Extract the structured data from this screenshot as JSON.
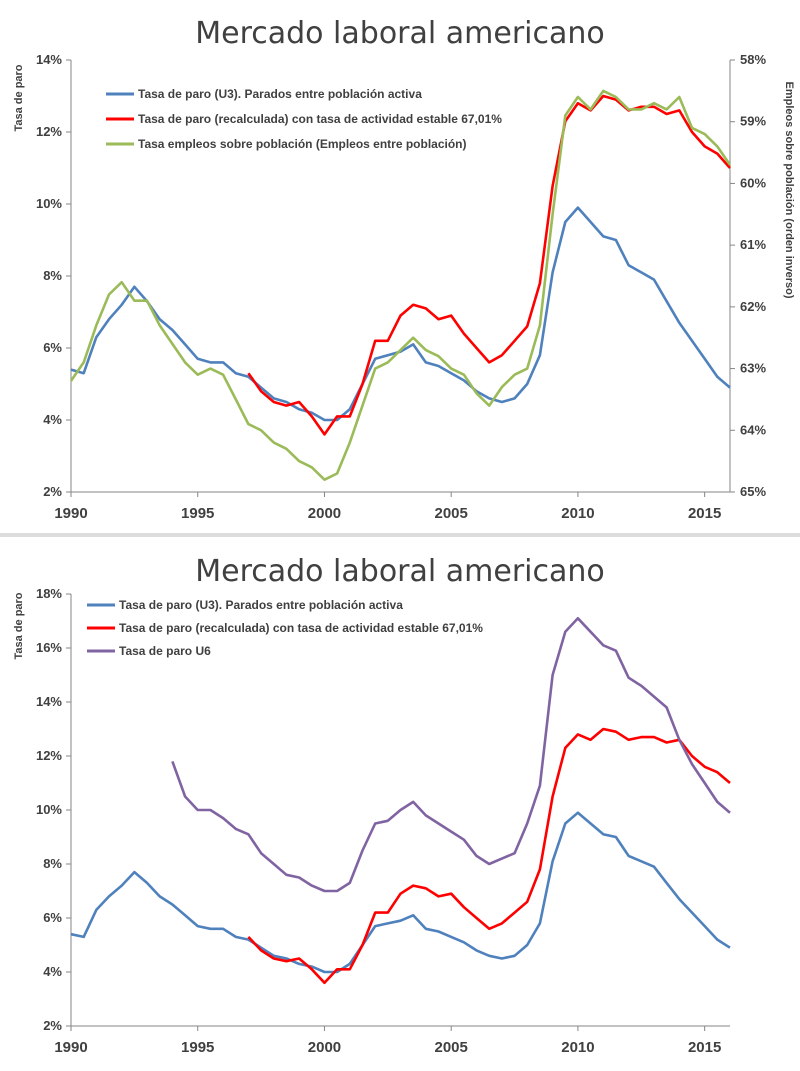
{
  "chart_data": [
    {
      "type": "line",
      "title": "Mercado laboral americano",
      "ylabel": "Tasa de paro",
      "y2label": "Empleos sobre población (orden inverso)",
      "ylim": [
        2,
        14
      ],
      "y2lim": [
        65,
        58
      ],
      "y2_inverted": true,
      "xlim": [
        1990,
        2016
      ],
      "yticks": [
        "2%",
        "4%",
        "6%",
        "8%",
        "10%",
        "12%",
        "14%"
      ],
      "y2ticks": [
        "65%",
        "64%",
        "63%",
        "62%",
        "61%",
        "60%",
        "59%",
        "58%"
      ],
      "xticks": [
        "1990",
        "1995",
        "2000",
        "2005",
        "2010",
        "2015"
      ],
      "legend_position": "top-left",
      "grid": false,
      "series": [
        {
          "name": "Tasa de paro (U3). Parados entre población activa",
          "color": "#4F81BD",
          "axis": "left",
          "x": [
            1990,
            1990.5,
            1991,
            1991.5,
            1992,
            1992.5,
            1993,
            1993.5,
            1994,
            1994.5,
            1995,
            1995.5,
            1996,
            1996.5,
            1997,
            1997.5,
            1998,
            1998.5,
            1999,
            1999.5,
            2000,
            2000.5,
            2001,
            2001.5,
            2002,
            2002.5,
            2003,
            2003.5,
            2004,
            2004.5,
            2005,
            2005.5,
            2006,
            2006.5,
            2007,
            2007.5,
            2008,
            2008.5,
            2009,
            2009.5,
            2010,
            2010.5,
            2011,
            2011.5,
            2012,
            2012.5,
            2013,
            2013.5,
            2014,
            2014.5,
            2015,
            2015.5,
            2016
          ],
          "y": [
            5.4,
            5.3,
            6.3,
            6.8,
            7.2,
            7.7,
            7.3,
            6.8,
            6.5,
            6.1,
            5.7,
            5.6,
            5.6,
            5.3,
            5.2,
            4.9,
            4.6,
            4.5,
            4.3,
            4.2,
            4.0,
            4.0,
            4.3,
            5.0,
            5.7,
            5.8,
            5.9,
            6.1,
            5.6,
            5.5,
            5.3,
            5.1,
            4.8,
            4.6,
            4.5,
            4.6,
            5.0,
            5.8,
            8.1,
            9.5,
            9.9,
            9.5,
            9.1,
            9.0,
            8.3,
            8.1,
            7.9,
            7.3,
            6.7,
            6.2,
            5.7,
            5.2,
            4.9
          ]
        },
        {
          "name": "Tasa de paro (recalculada) con tasa de actividad estable 67,01%",
          "color": "#FF0000",
          "axis": "left",
          "x": [
            1997,
            1997.5,
            1998,
            1998.5,
            1999,
            1999.5,
            2000,
            2000.5,
            2001,
            2001.5,
            2002,
            2002.5,
            2003,
            2003.5,
            2004,
            2004.5,
            2005,
            2005.5,
            2006,
            2006.5,
            2007,
            2007.5,
            2008,
            2008.5,
            2009,
            2009.5,
            2010,
            2010.5,
            2011,
            2011.5,
            2012,
            2012.5,
            2013,
            2013.5,
            2014,
            2014.5,
            2015,
            2015.5,
            2016
          ],
          "y": [
            5.3,
            4.8,
            4.5,
            4.4,
            4.5,
            4.1,
            3.6,
            4.1,
            4.1,
            5.0,
            6.2,
            6.2,
            6.9,
            7.2,
            7.1,
            6.8,
            6.9,
            6.4,
            6.0,
            5.6,
            5.8,
            6.2,
            6.6,
            7.8,
            10.5,
            12.3,
            12.8,
            12.6,
            13.0,
            12.9,
            12.6,
            12.7,
            12.7,
            12.5,
            12.6,
            12.0,
            11.6,
            11.4,
            11.0
          ]
        },
        {
          "name": "Tasa empleos sobre población (Empleos entre población)",
          "color": "#9BBB59",
          "axis": "right",
          "x": [
            1990,
            1990.5,
            1991,
            1991.5,
            1992,
            1992.5,
            1993,
            1993.5,
            1994,
            1994.5,
            1995,
            1995.5,
            1996,
            1996.5,
            1997,
            1997.5,
            1998,
            1998.5,
            1999,
            1999.5,
            2000,
            2000.5,
            2001,
            2001.5,
            2002,
            2002.5,
            2003,
            2003.5,
            2004,
            2004.5,
            2005,
            2005.5,
            2006,
            2006.5,
            2007,
            2007.5,
            2008,
            2008.5,
            2009,
            2009.5,
            2010,
            2010.5,
            2011,
            2011.5,
            2012,
            2012.5,
            2013,
            2013.5,
            2014,
            2014.5,
            2015,
            2015.5,
            2016
          ],
          "y": [
            63.2,
            62.9,
            62.3,
            61.8,
            61.6,
            61.9,
            61.9,
            62.3,
            62.6,
            62.9,
            63.1,
            63.0,
            63.1,
            63.5,
            63.9,
            64.0,
            64.2,
            64.3,
            64.5,
            64.6,
            64.8,
            64.7,
            64.2,
            63.6,
            63.0,
            62.9,
            62.7,
            62.5,
            62.7,
            62.8,
            63.0,
            63.1,
            63.4,
            63.6,
            63.3,
            63.1,
            63.0,
            62.3,
            60.5,
            58.9,
            58.6,
            58.8,
            58.5,
            58.6,
            58.8,
            58.8,
            58.7,
            58.8,
            58.6,
            59.1,
            59.2,
            59.4,
            59.7
          ]
        }
      ]
    },
    {
      "type": "line",
      "title": "Mercado laboral americano",
      "ylabel": "Tasa de paro",
      "ylim": [
        2,
        18
      ],
      "xlim": [
        1990,
        2016
      ],
      "yticks": [
        "2%",
        "4%",
        "6%",
        "8%",
        "10%",
        "12%",
        "14%",
        "16%",
        "18%"
      ],
      "xticks": [
        "1990",
        "1995",
        "2000",
        "2005",
        "2010",
        "2015"
      ],
      "legend_position": "top-left",
      "grid": false,
      "series": [
        {
          "name": "Tasa de paro (U3). Parados entre población activa",
          "color": "#4F81BD",
          "x": [
            1990,
            1990.5,
            1991,
            1991.5,
            1992,
            1992.5,
            1993,
            1993.5,
            1994,
            1994.5,
            1995,
            1995.5,
            1996,
            1996.5,
            1997,
            1997.5,
            1998,
            1998.5,
            1999,
            1999.5,
            2000,
            2000.5,
            2001,
            2001.5,
            2002,
            2002.5,
            2003,
            2003.5,
            2004,
            2004.5,
            2005,
            2005.5,
            2006,
            2006.5,
            2007,
            2007.5,
            2008,
            2008.5,
            2009,
            2009.5,
            2010,
            2010.5,
            2011,
            2011.5,
            2012,
            2012.5,
            2013,
            2013.5,
            2014,
            2014.5,
            2015,
            2015.5,
            2016
          ],
          "y": [
            5.4,
            5.3,
            6.3,
            6.8,
            7.2,
            7.7,
            7.3,
            6.8,
            6.5,
            6.1,
            5.7,
            5.6,
            5.6,
            5.3,
            5.2,
            4.9,
            4.6,
            4.5,
            4.3,
            4.2,
            4.0,
            4.0,
            4.3,
            5.0,
            5.7,
            5.8,
            5.9,
            6.1,
            5.6,
            5.5,
            5.3,
            5.1,
            4.8,
            4.6,
            4.5,
            4.6,
            5.0,
            5.8,
            8.1,
            9.5,
            9.9,
            9.5,
            9.1,
            9.0,
            8.3,
            8.1,
            7.9,
            7.3,
            6.7,
            6.2,
            5.7,
            5.2,
            4.9
          ]
        },
        {
          "name": "Tasa de paro (recalculada) con tasa de actividad estable 67,01%",
          "color": "#FF0000",
          "x": [
            1997,
            1997.5,
            1998,
            1998.5,
            1999,
            1999.5,
            2000,
            2000.5,
            2001,
            2001.5,
            2002,
            2002.5,
            2003,
            2003.5,
            2004,
            2004.5,
            2005,
            2005.5,
            2006,
            2006.5,
            2007,
            2007.5,
            2008,
            2008.5,
            2009,
            2009.5,
            2010,
            2010.5,
            2011,
            2011.5,
            2012,
            2012.5,
            2013,
            2013.5,
            2014,
            2014.5,
            2015,
            2015.5,
            2016
          ],
          "y": [
            5.3,
            4.8,
            4.5,
            4.4,
            4.5,
            4.1,
            3.6,
            4.1,
            4.1,
            5.0,
            6.2,
            6.2,
            6.9,
            7.2,
            7.1,
            6.8,
            6.9,
            6.4,
            6.0,
            5.6,
            5.8,
            6.2,
            6.6,
            7.8,
            10.5,
            12.3,
            12.8,
            12.6,
            13.0,
            12.9,
            12.6,
            12.7,
            12.7,
            12.5,
            12.6,
            12.0,
            11.6,
            11.4,
            11.0
          ]
        },
        {
          "name": "Tasa de paro U6",
          "color": "#8064A2",
          "x": [
            1994,
            1994.5,
            1995,
            1995.5,
            1996,
            1996.5,
            1997,
            1997.5,
            1998,
            1998.5,
            1999,
            1999.5,
            2000,
            2000.5,
            2001,
            2001.5,
            2002,
            2002.5,
            2003,
            2003.5,
            2004,
            2004.5,
            2005,
            2005.5,
            2006,
            2006.5,
            2007,
            2007.5,
            2008,
            2008.5,
            2009,
            2009.5,
            2010,
            2010.5,
            2011,
            2011.5,
            2012,
            2012.5,
            2013,
            2013.5,
            2014,
            2014.5,
            2015,
            2015.5,
            2016
          ],
          "y": [
            11.8,
            10.5,
            10.0,
            10.0,
            9.7,
            9.3,
            9.1,
            8.4,
            8.0,
            7.6,
            7.5,
            7.2,
            7.0,
            7.0,
            7.3,
            8.5,
            9.5,
            9.6,
            10.0,
            10.3,
            9.8,
            9.5,
            9.2,
            8.9,
            8.3,
            8.0,
            8.2,
            8.4,
            9.5,
            10.9,
            15.0,
            16.6,
            17.1,
            16.6,
            16.1,
            15.9,
            14.9,
            14.6,
            14.2,
            13.8,
            12.6,
            11.7,
            11.0,
            10.3,
            9.9
          ]
        }
      ]
    }
  ]
}
